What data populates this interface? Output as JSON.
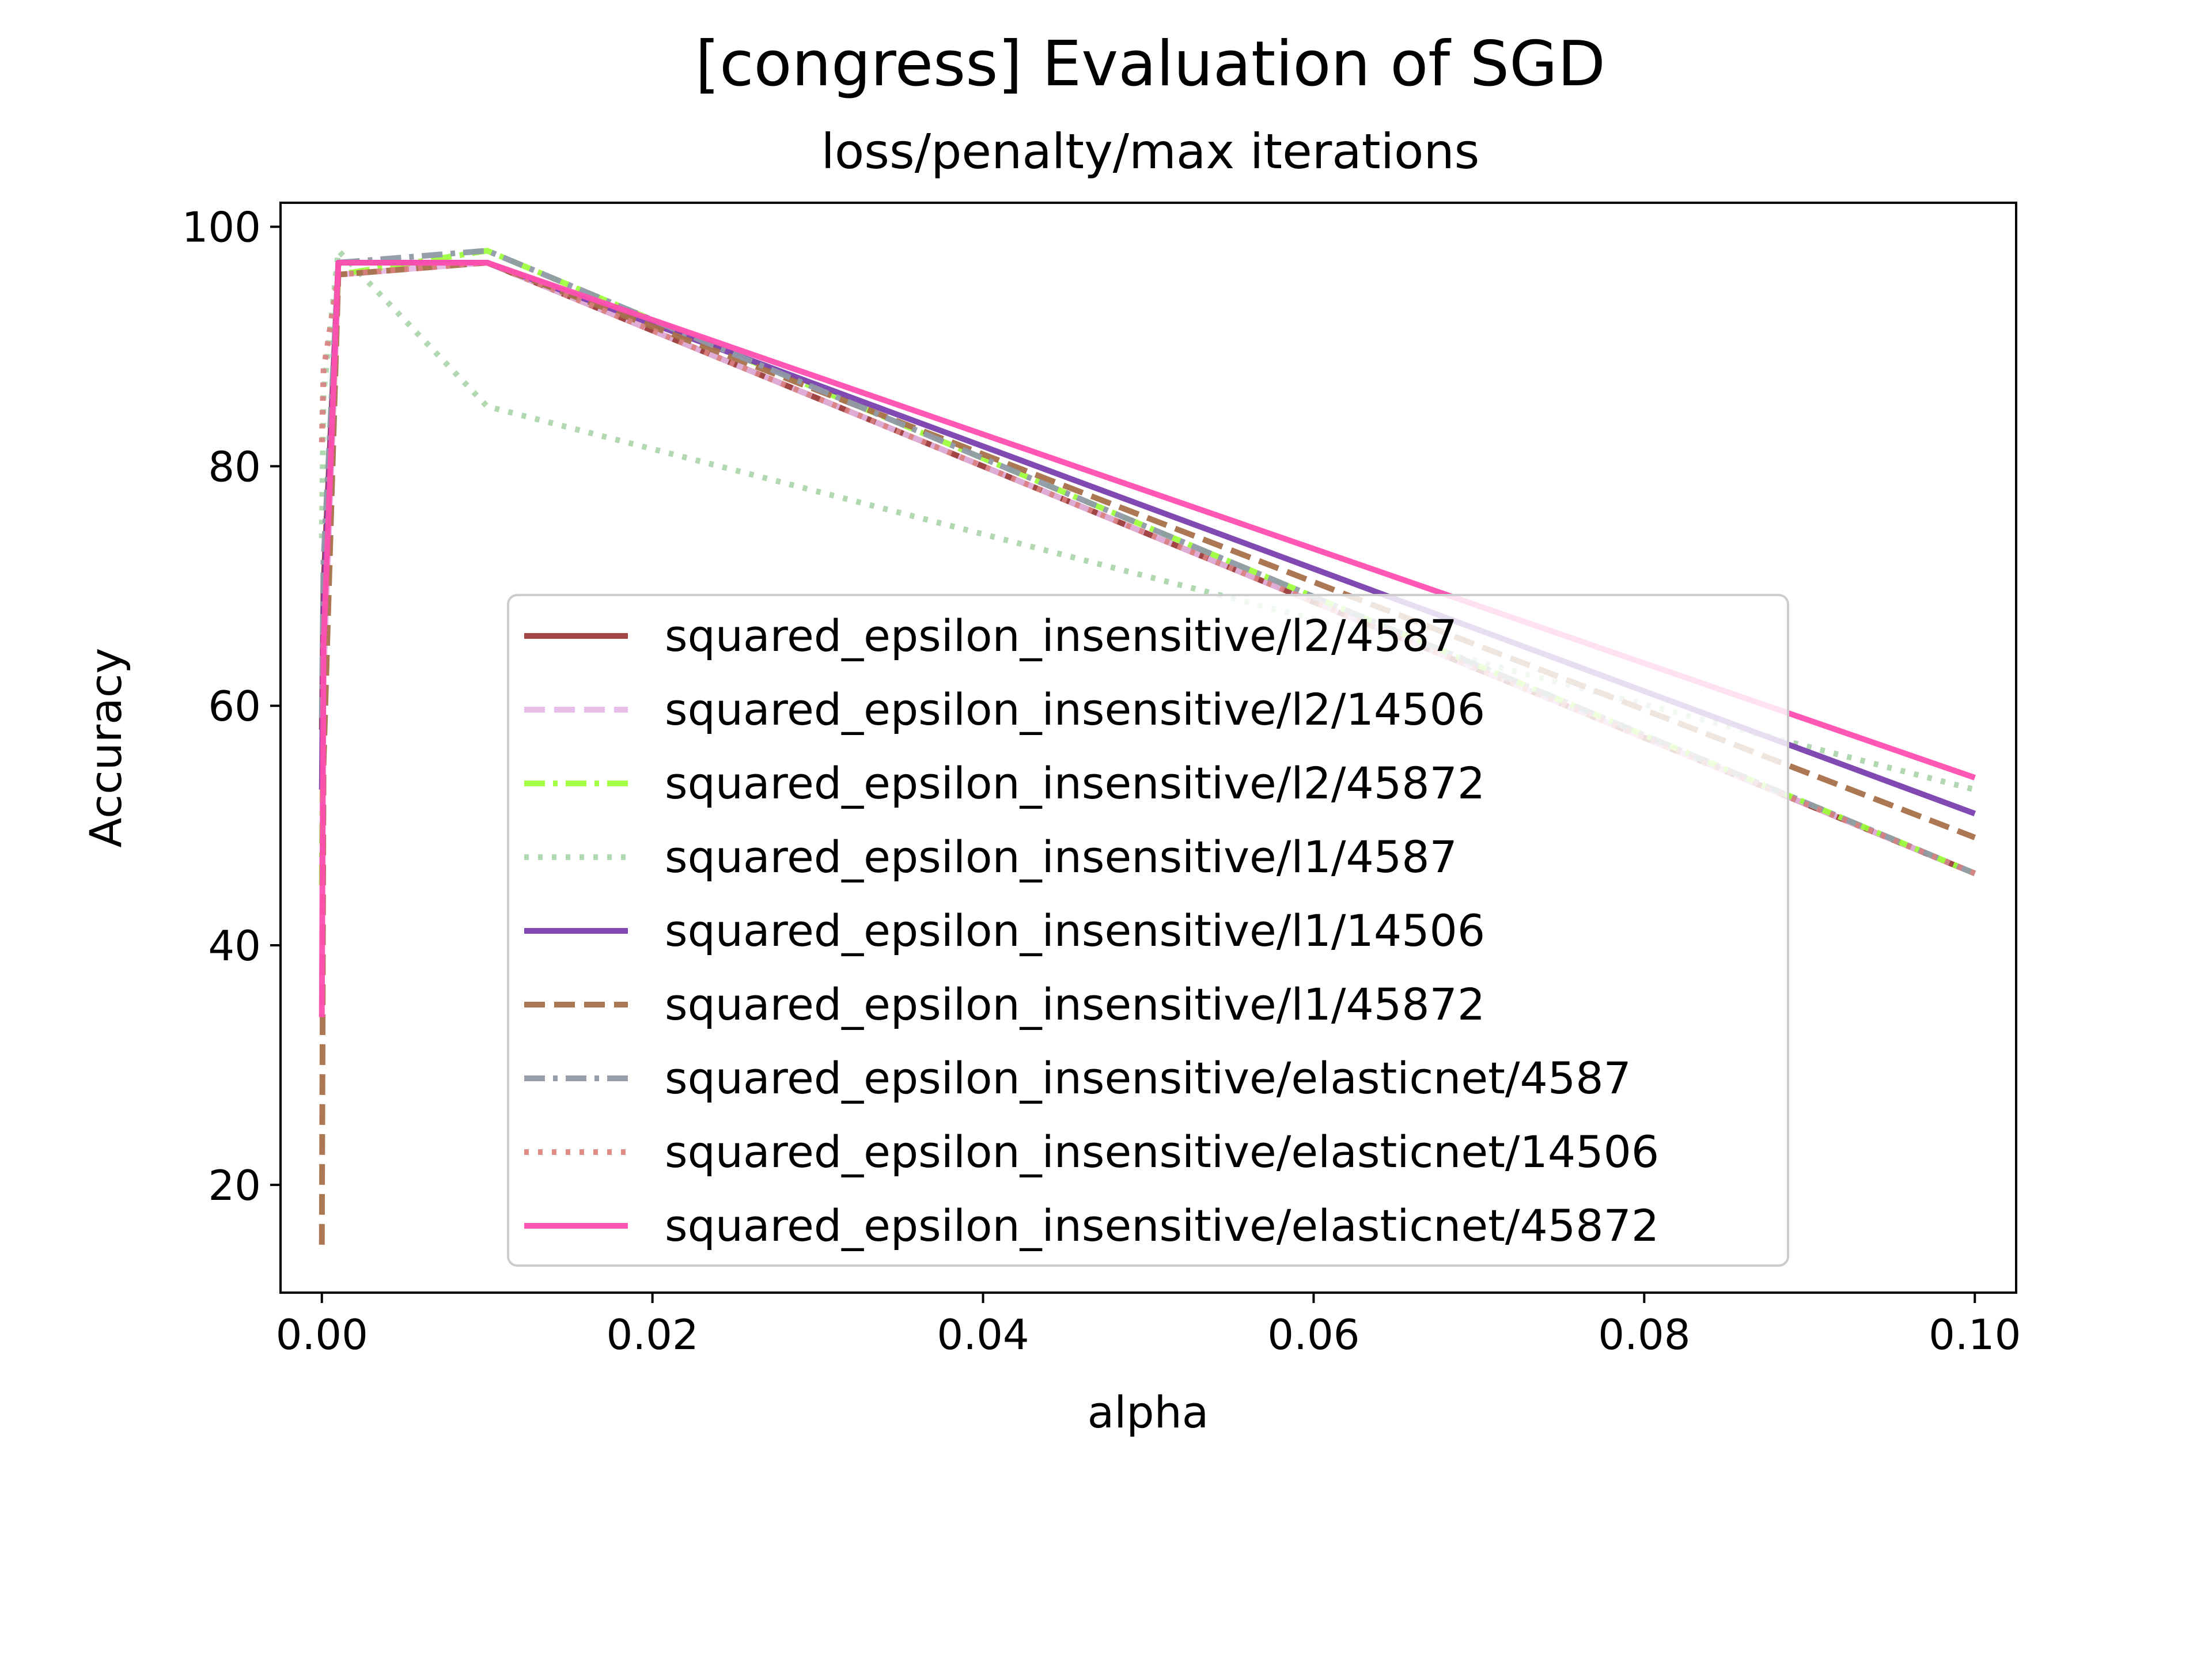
{
  "chart_data": {
    "type": "line",
    "title": "[congress] Evaluation of SGD",
    "subtitle": "loss/penalty/max iterations",
    "xlabel": "alpha",
    "ylabel": "Accuracy",
    "xlim": [
      -0.0025,
      0.1025
    ],
    "ylim": [
      11,
      102
    ],
    "xticks": [
      0.0,
      0.02,
      0.04,
      0.06,
      0.08,
      0.1
    ],
    "xtick_labels": [
      "0.00",
      "0.02",
      "0.04",
      "0.06",
      "0.08",
      "0.10"
    ],
    "yticks": [
      20,
      40,
      60,
      80,
      100
    ],
    "ytick_labels": [
      "20",
      "40",
      "60",
      "80",
      "100"
    ],
    "grid": false,
    "legend_position": "center-right",
    "x": [
      0.0,
      0.0001,
      0.001,
      0.01,
      0.1
    ],
    "series": [
      {
        "name": "squared_epsilon_insensitive/l2/4587",
        "color": "#9c3b3b",
        "dash": "solid",
        "opacity": 0.95,
        "values": [
          58,
          70,
          97,
          97,
          46
        ]
      },
      {
        "name": "squared_epsilon_insensitive/l2/14506",
        "color": "#e6b7e6",
        "dash": "dashed",
        "opacity": 0.9,
        "values": [
          46,
          62,
          96,
          97,
          46
        ]
      },
      {
        "name": "squared_epsilon_insensitive/l2/45872",
        "color": "#99ff33",
        "dash": "dashdot",
        "opacity": 0.9,
        "values": [
          45,
          66,
          96,
          98,
          46
        ]
      },
      {
        "name": "squared_epsilon_insensitive/l1/4587",
        "color": "#a8d4a8",
        "dash": "dotted",
        "opacity": 0.9,
        "values": [
          74,
          86,
          98,
          85,
          53
        ]
      },
      {
        "name": "squared_epsilon_insensitive/l1/14506",
        "color": "#7a3fae",
        "dash": "solid",
        "opacity": 0.95,
        "values": [
          53,
          68,
          97,
          97,
          51
        ]
      },
      {
        "name": "squared_epsilon_insensitive/l1/45872",
        "color": "#a8704a",
        "dash": "dashed",
        "opacity": 0.95,
        "values": [
          15,
          55,
          96,
          97,
          49
        ]
      },
      {
        "name": "squared_epsilon_insensitive/elasticnet/4587",
        "color": "#8f9aa8",
        "dash": "dashdot",
        "opacity": 0.95,
        "values": [
          59,
          72,
          97,
          98,
          46
        ]
      },
      {
        "name": "squared_epsilon_insensitive/elasticnet/14506",
        "color": "#d98080",
        "dash": "dotted",
        "opacity": 0.9,
        "values": [
          82,
          88,
          96,
          97,
          46
        ]
      },
      {
        "name": "squared_epsilon_insensitive/elasticnet/45872",
        "color": "#ff4fb0",
        "dash": "solid",
        "opacity": 0.95,
        "values": [
          34,
          65,
          97,
          97,
          54
        ]
      }
    ]
  }
}
